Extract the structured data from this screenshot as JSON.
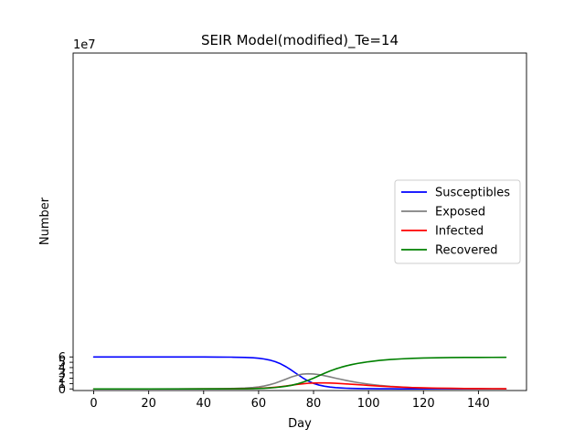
{
  "chart_data": {
    "type": "line",
    "title": "SEIR Model(modified)_Te=14",
    "xlabel": "Day",
    "ylabel": "Number",
    "y_offset_label": "1e7",
    "xlim": [
      -7.5,
      157.5
    ],
    "ylim": [
      -0.3,
      63
    ],
    "x_ticks": [
      0,
      20,
      40,
      60,
      80,
      100,
      120,
      140
    ],
    "y_ticks": [
      0,
      1,
      2,
      3,
      4,
      5,
      6
    ],
    "y_unit_multiplier": 10000000,
    "grid": false,
    "legend_position": "center-right",
    "x": [
      0,
      10,
      20,
      30,
      40,
      45,
      50,
      55,
      58,
      60,
      62,
      64,
      66,
      68,
      70,
      72,
      74,
      76,
      78,
      80,
      82,
      84,
      86,
      88,
      90,
      92,
      94,
      96,
      98,
      100,
      104,
      108,
      112,
      116,
      120,
      125,
      130,
      135,
      140,
      145,
      150
    ],
    "series": [
      {
        "name": "Susceptibles",
        "color": "#0000ff",
        "values": [
          6.0,
          6.0,
          6.0,
          6.0,
          5.99,
          5.98,
          5.96,
          5.91,
          5.84,
          5.76,
          5.62,
          5.42,
          5.12,
          4.71,
          4.16,
          3.5,
          2.79,
          2.1,
          1.5,
          1.04,
          0.72,
          0.5,
          0.35,
          0.25,
          0.18,
          0.13,
          0.1,
          0.08,
          0.06,
          0.05,
          0.035,
          0.025,
          0.018,
          0.013,
          0.01,
          0.007,
          0.005,
          0.004,
          0.003,
          0.002,
          0.002
        ]
      },
      {
        "name": "Exposed",
        "color": "#808080",
        "values": [
          0,
          0,
          0,
          0.005,
          0.02,
          0.04,
          0.08,
          0.17,
          0.28,
          0.38,
          0.55,
          0.78,
          1.08,
          1.45,
          1.85,
          2.25,
          2.56,
          2.78,
          2.84,
          2.8,
          2.68,
          2.48,
          2.26,
          2.02,
          1.8,
          1.58,
          1.38,
          1.2,
          1.04,
          0.9,
          0.66,
          0.48,
          0.35,
          0.26,
          0.19,
          0.13,
          0.09,
          0.07,
          0.05,
          0.04,
          0.03
        ]
      },
      {
        "name": "Infected",
        "color": "#ff0000",
        "values": [
          0,
          0,
          0,
          0,
          0.005,
          0.01,
          0.02,
          0.05,
          0.08,
          0.11,
          0.16,
          0.23,
          0.32,
          0.43,
          0.56,
          0.7,
          0.84,
          0.96,
          1.05,
          1.1,
          1.13,
          1.13,
          1.11,
          1.06,
          1.0,
          0.94,
          0.87,
          0.8,
          0.73,
          0.66,
          0.53,
          0.42,
          0.33,
          0.26,
          0.2,
          0.15,
          0.11,
          0.08,
          0.06,
          0.045,
          0.035
        ]
      },
      {
        "name": "Recovered",
        "color": "#008000",
        "values": [
          0,
          0,
          0,
          0,
          0.005,
          0.01,
          0.02,
          0.04,
          0.06,
          0.08,
          0.12,
          0.18,
          0.26,
          0.37,
          0.5,
          0.68,
          0.93,
          1.24,
          1.6,
          2.02,
          2.48,
          2.94,
          3.36,
          3.74,
          4.06,
          4.34,
          4.58,
          4.78,
          4.95,
          5.1,
          5.35,
          5.52,
          5.64,
          5.73,
          5.8,
          5.85,
          5.88,
          5.9,
          5.91,
          5.92,
          5.93
        ]
      }
    ]
  }
}
